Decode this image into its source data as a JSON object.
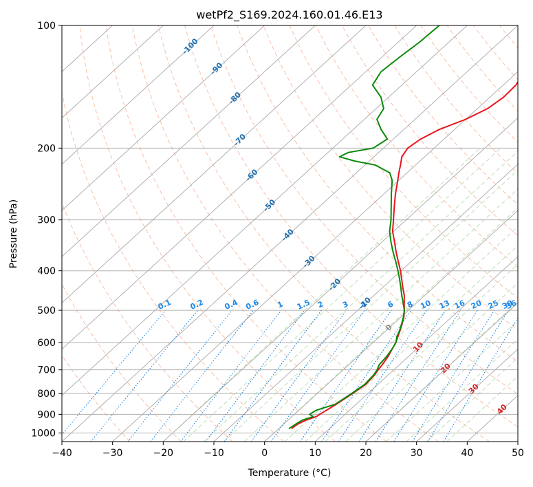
{
  "chart_data": {
    "type": "line",
    "subtype": "skew-t log-p diagram",
    "title": "wetPf2_S169.2024.160.01.46.E13",
    "xlabel": "Temperature (°C)",
    "ylabel": "Pressure (hPa)",
    "xlim": [
      -40,
      50
    ],
    "ylim": [
      1050,
      100
    ],
    "y_scale": "log",
    "grid": true,
    "x_ticks": [
      -40,
      -30,
      -20,
      -10,
      0,
      10,
      20,
      30,
      40,
      50
    ],
    "y_ticks": [
      1000,
      900,
      800,
      700,
      600,
      500,
      400,
      300,
      200,
      100
    ],
    "isotherm_labels": [
      "-100",
      "-90",
      "-80",
      "-70",
      "-60",
      "-50",
      "-40",
      "-30",
      "-20",
      "-10",
      "0",
      "10",
      "20",
      "30",
      "40"
    ],
    "mixing_ratio_labels": [
      "0.1",
      "0.2",
      "0.4",
      "0.6",
      "1",
      "1.5",
      "2",
      "3",
      "4",
      "6",
      "8",
      "10",
      "13",
      "16",
      "20",
      "25",
      "30",
      "36"
    ],
    "colors": {
      "temperature": "#e8141c",
      "dewpoint": "#0a8a0a",
      "isotherm_label_cold": "#1f6fb0",
      "isotherm_label_warm": "#d62728",
      "isotherm_label_zero": "#888888",
      "mixing_ratio": "#1e88e5",
      "dry_adiabat": "#f4a582",
      "moist_adiabat": "#a6d49b",
      "isobar_grid": "#b0b0b0"
    },
    "series": [
      {
        "key": "temperature",
        "pressure": [
          976,
          950,
          930,
          912,
          900,
          850,
          800,
          760,
          720,
          700,
          680,
          650,
          620,
          600,
          580,
          560,
          540,
          520,
          500,
          480,
          460,
          440,
          420,
          400,
          380,
          360,
          340,
          320,
          300,
          280,
          260,
          240,
          230,
          220,
          210,
          200,
          190,
          180,
          170,
          160,
          150,
          140,
          130,
          120,
          110,
          100
        ],
        "values": [
          2.5,
          2.8,
          3.5,
          4.8,
          5.0,
          6.1,
          7.0,
          7.6,
          7.3,
          6.9,
          6.6,
          6.0,
          5.1,
          4.5,
          3.6,
          2.7,
          1.7,
          0.6,
          -0.8,
          -2.4,
          -4.0,
          -6.0,
          -8.0,
          -10.1,
          -12.5,
          -15.0,
          -17.5,
          -20.2,
          -22.5,
          -25.0,
          -27.6,
          -30.2,
          -31.6,
          -33.0,
          -34.5,
          -35.2,
          -34.6,
          -33.0,
          -30.0,
          -28.0,
          -27.3,
          -27.5,
          -28.6,
          -29.8,
          -31.0,
          -31.8
        ]
      },
      {
        "key": "dewpoint",
        "pressure": [
          976,
          950,
          930,
          912,
          900,
          880,
          850,
          800,
          760,
          720,
          700,
          680,
          650,
          620,
          600,
          580,
          560,
          540,
          520,
          500,
          480,
          460,
          440,
          420,
          400,
          380,
          360,
          340,
          320,
          300,
          280,
          260,
          240,
          230,
          220,
          215,
          210,
          205,
          200,
          190,
          180,
          170,
          160,
          150,
          140,
          130,
          120,
          110,
          100
        ],
        "values": [
          2.0,
          2.4,
          2.8,
          4.2,
          3.0,
          3.4,
          5.9,
          6.8,
          7.4,
          7.1,
          6.7,
          6.0,
          5.7,
          5.1,
          4.5,
          3.4,
          2.6,
          1.6,
          0.5,
          -0.8,
          -2.6,
          -4.5,
          -6.4,
          -8.4,
          -10.6,
          -13.0,
          -15.6,
          -18.2,
          -20.8,
          -23.0,
          -25.6,
          -28.4,
          -31.3,
          -33.4,
          -38.0,
          -43.0,
          -46.8,
          -46.0,
          -42.0,
          -41.2,
          -44.5,
          -47.5,
          -48.5,
          -51.5,
          -55.8,
          -57.0,
          -56.5,
          -55.8,
          -55.5
        ]
      }
    ]
  }
}
